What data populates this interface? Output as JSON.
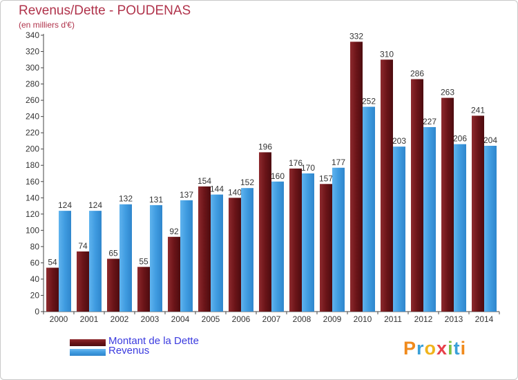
{
  "title": "Revenus/Dette - POUDENAS",
  "subtitle": "(en milliers d'€)",
  "logo_text": "Proxiti",
  "colors": {
    "dette": "#6b1418",
    "revenus": "#3f9be0",
    "title": "#b0334b",
    "legend_text": "#3a3adf"
  },
  "chart_data": {
    "type": "bar",
    "title": "Revenus/Dette - POUDENAS",
    "ylabel": "(en milliers d'€)",
    "xlabel": "",
    "categories": [
      "2000",
      "2001",
      "2002",
      "2003",
      "2004",
      "2005",
      "2006",
      "2007",
      "2008",
      "2009",
      "2010",
      "2011",
      "2012",
      "2013",
      "2014"
    ],
    "series": [
      {
        "name": "Montant de la Dette",
        "values": [
          54,
          74,
          65,
          55,
          92,
          154,
          140,
          196,
          176,
          157,
          332,
          310,
          286,
          263,
          241
        ]
      },
      {
        "name": "Revenus",
        "values": [
          124,
          124,
          132,
          131,
          137,
          144,
          152,
          160,
          170,
          177,
          252,
          203,
          227,
          206,
          204
        ]
      }
    ],
    "ylim": [
      0,
      340
    ],
    "ytick_step": 20,
    "grid": false,
    "legend_position": "bottom-left"
  }
}
